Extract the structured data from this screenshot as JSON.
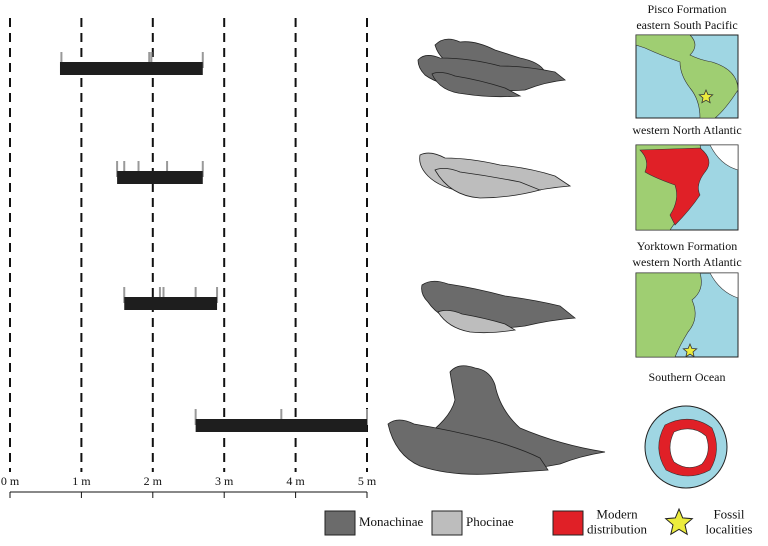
{
  "chart_data": {
    "type": "range_bar",
    "xlim": [
      0,
      5
    ],
    "xticks": [
      {
        "value": 0,
        "label": "0 m"
      },
      {
        "value": 1,
        "label": "1 m"
      },
      {
        "value": 2,
        "label": "2 m"
      },
      {
        "value": 3,
        "label": "3 m"
      },
      {
        "value": 4,
        "label": "4 m"
      },
      {
        "value": 5,
        "label": "5 m"
      }
    ],
    "grid": true,
    "bar_color": "#1e1e1e",
    "rows": [
      {
        "location": [
          "Pisco Formation",
          "eastern South Pacific"
        ],
        "range": [
          0.7,
          2.7
        ],
        "specimens": [
          0.72,
          1.95,
          1.98,
          2.7
        ]
      },
      {
        "location": [
          "western North Atlantic"
        ],
        "range": [
          1.5,
          2.7
        ],
        "specimens": [
          1.5,
          1.6,
          1.8,
          2.2,
          2.7
        ]
      },
      {
        "location": [
          "Yorktown Formation",
          "western North Atlantic"
        ],
        "range": [
          1.6,
          2.9
        ],
        "specimens": [
          1.6,
          2.1,
          2.15,
          2.6,
          2.9
        ]
      },
      {
        "location": [
          "Southern Ocean"
        ],
        "range": [
          2.6,
          5.0
        ],
        "specimens": [
          2.6,
          3.8,
          5.0
        ]
      }
    ],
    "legend": [
      {
        "name": [
          "Monachinae"
        ],
        "color": "#6b6b6b",
        "shape": "square"
      },
      {
        "name": [
          "Phocinae"
        ],
        "color": "#bdbdbd",
        "shape": "square"
      },
      {
        "name": [
          "Modern",
          "distribution"
        ],
        "color": "#e02027",
        "shape": "square"
      },
      {
        "name": [
          "Fossil",
          "localities"
        ],
        "color": "#ecec3c",
        "shape": "star"
      }
    ]
  }
}
